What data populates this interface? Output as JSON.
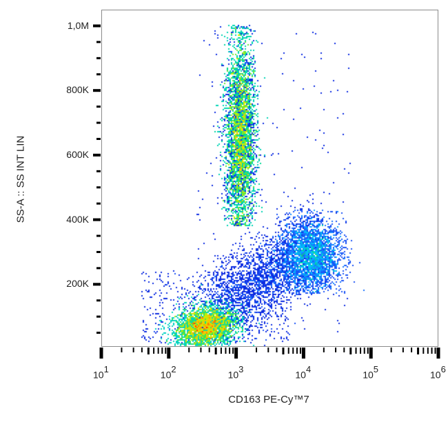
{
  "chart_data": {
    "type": "scatter",
    "subtype": "flow-cytometry-density-dot-plot",
    "title": "",
    "xlabel": "CD163 PE-Cy™7",
    "ylabel": "SS-A :: SS INT LIN",
    "x_scale": "log",
    "x_range": [
      10,
      1000000
    ],
    "x_ticks": [
      {
        "base": "10",
        "exp": "1",
        "value": 10
      },
      {
        "base": "10",
        "exp": "2",
        "value": 100
      },
      {
        "base": "10",
        "exp": "3",
        "value": 1000
      },
      {
        "base": "10",
        "exp": "4",
        "value": 10000
      },
      {
        "base": "10",
        "exp": "5",
        "value": 100000
      },
      {
        "base": "10",
        "exp": "6",
        "value": 1000000
      }
    ],
    "y_scale": "linear",
    "y_range": [
      0,
      1050000
    ],
    "y_ticks": [
      {
        "label": "200K",
        "value": 200000
      },
      {
        "label": "400K",
        "value": 400000
      },
      {
        "label": "600K",
        "value": 600000
      },
      {
        "label": "800K",
        "value": 800000
      },
      {
        "label": "1,0M",
        "value": 1000000
      }
    ],
    "y_minor_tick_step": 50000,
    "grid": false,
    "legend": null,
    "color_scale": [
      "#0000c8",
      "#1e64ff",
      "#00c8ff",
      "#00e070",
      "#d0f000",
      "#ffc000",
      "#ff2000"
    ],
    "populations": [
      {
        "name": "granulocytes",
        "x_center": 1150,
        "x_sigma_decades": 0.11,
        "y_center": 660000,
        "y_sigma": 150000,
        "y_min": 380000,
        "y_max": 1000000,
        "relative_density": "high",
        "peak_color": "red"
      },
      {
        "name": "lymphocytes",
        "x_center": 350,
        "x_sigma_decades": 0.22,
        "y_center": 70000,
        "y_sigma": 30000,
        "y_min": 10000,
        "y_max": 220000,
        "relative_density": "very high",
        "peak_color": "red"
      },
      {
        "name": "cd163-positive-monocytes",
        "x_center": 13000,
        "x_sigma_decades": 0.22,
        "y_center": 290000,
        "y_sigma": 55000,
        "y_min": 170000,
        "y_max": 430000,
        "relative_density": "medium",
        "peak_color": "cyan"
      }
    ]
  },
  "axes": {
    "x_title": "CD163 PE-Cy™7",
    "y_title": "SS-A :: SS INT LIN"
  }
}
